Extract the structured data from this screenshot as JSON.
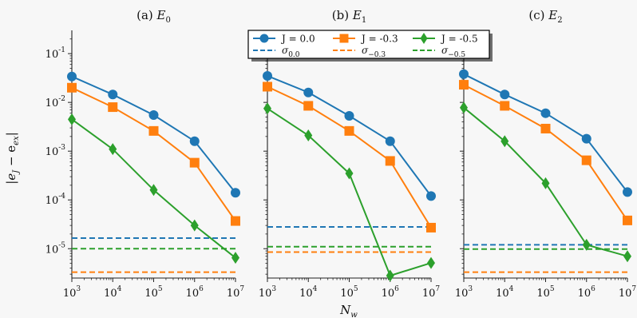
{
  "chart_data": {
    "type": "line",
    "ylabel": "|e_J − e_ex|",
    "xlabel": "N_w",
    "x": [
      1000,
      10000,
      100000,
      1000000,
      10000000
    ],
    "xticks": [
      {
        "base": "10",
        "exp": "3"
      },
      {
        "base": "10",
        "exp": "4"
      },
      {
        "base": "10",
        "exp": "5"
      },
      {
        "base": "10",
        "exp": "6"
      },
      {
        "base": "10",
        "exp": "7"
      }
    ],
    "yticks": [
      {
        "base": "10",
        "exp": "-1",
        "value": 0.1
      },
      {
        "base": "10",
        "exp": "-2",
        "value": 0.01
      },
      {
        "base": "10",
        "exp": "-3",
        "value": 0.001
      },
      {
        "base": "10",
        "exp": "-4",
        "value": 0.0001
      },
      {
        "base": "10",
        "exp": "-5",
        "value": 1e-05
      }
    ],
    "yscale": "log",
    "xscale": "log",
    "ylim": [
      2.5e-06,
      0.3
    ],
    "xlim": [
      1000,
      10000000
    ],
    "legend": {
      "placement": "top-center",
      "entries": [
        {
          "label": "J = 0.0",
          "color": "#1f77b4",
          "kind": "series",
          "marker": "circle"
        },
        {
          "label": "J = -0.3",
          "color": "#ff7f0e",
          "kind": "series",
          "marker": "square"
        },
        {
          "label": "J = -0.5",
          "color": "#2ca02c",
          "kind": "series",
          "marker": "diamond"
        },
        {
          "label_base": "σ",
          "label_sub": "0.0",
          "color": "#1f77b4",
          "kind": "sigma"
        },
        {
          "label_base": "σ",
          "label_sub": "−0.3",
          "color": "#ff7f0e",
          "kind": "sigma"
        },
        {
          "label_base": "σ",
          "label_sub": "−0.5",
          "color": "#2ca02c",
          "kind": "sigma"
        }
      ]
    },
    "panels": [
      {
        "title_prefix": "(a) ",
        "title_var": "E",
        "title_sub": "0",
        "series": [
          {
            "name": "J = 0.0",
            "color": "#1f77b4",
            "marker": "circle",
            "values": [
              0.034,
              0.0145,
              0.0055,
              0.0016,
              0.00014
            ]
          },
          {
            "name": "J = -0.3",
            "color": "#ff7f0e",
            "marker": "square",
            "values": [
              0.02,
              0.008,
              0.0026,
              0.00058,
              3.7e-05
            ]
          },
          {
            "name": "J = -0.5",
            "color": "#2ca02c",
            "marker": "diamond",
            "values": [
              0.0045,
              0.0011,
              0.00016,
              3e-05,
              6.5e-06
            ]
          }
        ],
        "sigma": [
          {
            "name": "σ0.0",
            "color": "#1f77b4",
            "value": 1.65e-05
          },
          {
            "name": "σ-0.3",
            "color": "#ff7f0e",
            "value": 3.3e-06
          },
          {
            "name": "σ-0.5",
            "color": "#2ca02c",
            "value": 1e-05
          }
        ]
      },
      {
        "title_prefix": "(b) ",
        "title_var": "E",
        "title_sub": "1",
        "series": [
          {
            "name": "J = 0.0",
            "color": "#1f77b4",
            "marker": "circle",
            "values": [
              0.035,
              0.016,
              0.0053,
              0.0016,
              0.00012
            ]
          },
          {
            "name": "J = -0.3",
            "color": "#ff7f0e",
            "marker": "square",
            "values": [
              0.021,
              0.0085,
              0.0026,
              0.00063,
              2.7e-05
            ]
          },
          {
            "name": "J = -0.5",
            "color": "#2ca02c",
            "marker": "diamond",
            "values": [
              0.0075,
              0.0021,
              0.00035,
              2.8e-06,
              5.1e-06
            ]
          }
        ],
        "sigma": [
          {
            "name": "σ0.0",
            "color": "#1f77b4",
            "value": 2.8e-05
          },
          {
            "name": "σ-0.3",
            "color": "#ff7f0e",
            "value": 8.5e-06
          },
          {
            "name": "σ-0.5",
            "color": "#2ca02c",
            "value": 1.1e-05
          }
        ]
      },
      {
        "title_prefix": "(c) ",
        "title_var": "E",
        "title_sub": "2",
        "series": [
          {
            "name": "J = 0.0",
            "color": "#1f77b4",
            "marker": "circle",
            "values": [
              0.038,
              0.0145,
              0.006,
              0.0018,
              0.000145
            ]
          },
          {
            "name": "J = -0.3",
            "color": "#ff7f0e",
            "marker": "square",
            "values": [
              0.023,
              0.0085,
              0.0029,
              0.00065,
              3.8e-05
            ]
          },
          {
            "name": "J = -0.5",
            "color": "#2ca02c",
            "marker": "diamond",
            "values": [
              0.0078,
              0.0016,
              0.00022,
              1.2e-05,
              7e-06
            ]
          }
        ],
        "sigma": [
          {
            "name": "σ0.0",
            "color": "#1f77b4",
            "value": 1.2e-05
          },
          {
            "name": "σ-0.3",
            "color": "#ff7f0e",
            "value": 3.3e-06
          },
          {
            "name": "σ-0.5",
            "color": "#2ca02c",
            "value": 9.8e-06
          }
        ]
      }
    ]
  }
}
